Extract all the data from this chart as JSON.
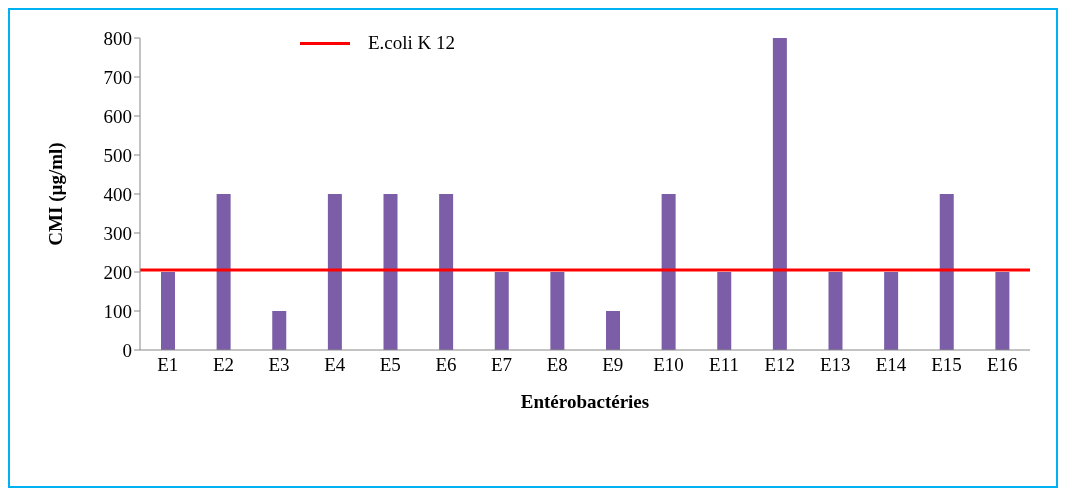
{
  "chart_data": {
    "type": "bar",
    "xlabel": "Entérobactéries",
    "ylabel": "CMI (µg/ml)",
    "categories": [
      "E1",
      "E2",
      "E3",
      "E4",
      "E5",
      "E6",
      "E7",
      "E8",
      "E9",
      "E10",
      "E11",
      "E12",
      "E13",
      "E14",
      "E15",
      "E16"
    ],
    "values": [
      200,
      400,
      100,
      400,
      400,
      400,
      200,
      200,
      100,
      400,
      200,
      800,
      200,
      200,
      400,
      200
    ],
    "color": "#7b5ea7",
    "ylim": [
      0,
      800
    ],
    "yticks": [
      0,
      100,
      200,
      300,
      400,
      500,
      600,
      700,
      800
    ],
    "ref_lines": [
      {
        "axis": "y",
        "value": 205,
        "label": "E.coli K 12",
        "color": "#ff0000"
      }
    ],
    "grid": false,
    "legend": "top"
  }
}
